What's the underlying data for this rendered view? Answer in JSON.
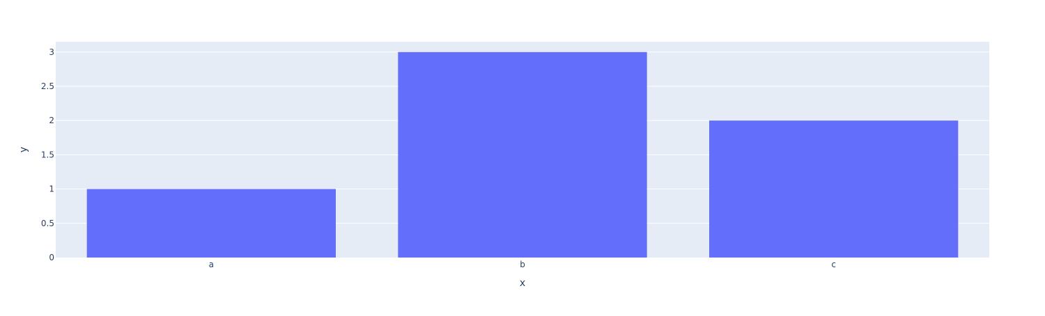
{
  "chart_data": {
    "type": "bar",
    "categories": [
      "a",
      "b",
      "c"
    ],
    "values": [
      1,
      3,
      2
    ],
    "title": "",
    "xlabel": "x",
    "ylabel": "y",
    "ylim": [
      0,
      3.15
    ],
    "y_ticks": [
      0,
      0.5,
      1,
      1.5,
      2,
      2.5,
      3
    ],
    "y_tick_labels": [
      "0",
      "0.5",
      "1",
      "1.5",
      "2",
      "2.5",
      "3"
    ],
    "grid": true,
    "legend": "none"
  },
  "colors": {
    "bar": "#636efa",
    "plot_background": "#e5ecf6",
    "gridline": "#ffffff",
    "text": "#2a3f5f"
  }
}
